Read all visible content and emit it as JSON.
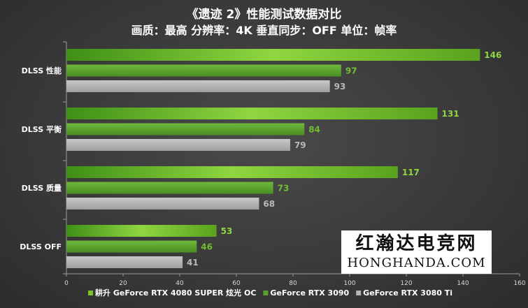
{
  "chart_data": {
    "type": "bar",
    "orientation": "horizontal",
    "title": "《遗迹 2》性能测试数据对比",
    "subtitle": "画质：最高 分辨率：4K 垂直同步：OFF 单位：帧率",
    "categories": [
      "DLSS 性能",
      "DLSS 平衡",
      "DLSS 质量",
      "DLSS OFF"
    ],
    "series": [
      {
        "name": "耕升 GeForce RTX 4080 SUPER 炫光 OC",
        "values": [
          146,
          131,
          117,
          53
        ],
        "color": "#7cc528"
      },
      {
        "name": "GeForce RTX 3090",
        "values": [
          97,
          84,
          73,
          46
        ],
        "color": "#5aa22a"
      },
      {
        "name": "GeForce RTX 3080 Ti",
        "values": [
          93,
          79,
          68,
          41
        ],
        "color": "#b4b4b4"
      }
    ],
    "xlim": [
      0,
      160
    ],
    "xticks": [
      0,
      20,
      40,
      60,
      80,
      100,
      120,
      140,
      160
    ],
    "legend_position": "bottom",
    "grid": false
  },
  "watermark": {
    "cn": "红瀚达电竞网",
    "en": "HONGHANDA.COM"
  }
}
